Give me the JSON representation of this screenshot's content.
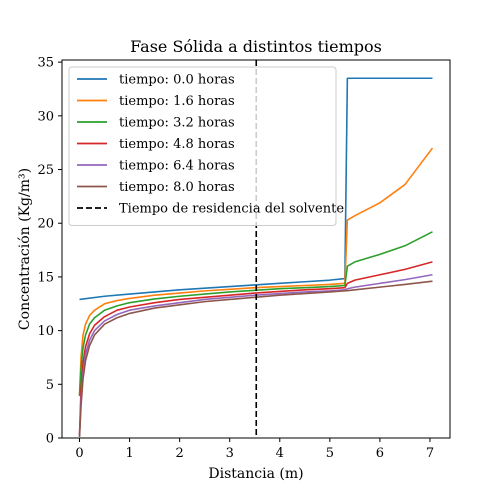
{
  "chart_data": {
    "type": "line",
    "title": "Fase Sólida a distintos tiempos",
    "xlabel": "Distancia (m)",
    "ylabel": "Concentración (Kg/m³)",
    "xlim": [
      -0.35,
      7.4
    ],
    "ylim": [
      0,
      35.2
    ],
    "x_ticks": [
      0,
      1,
      2,
      3,
      4,
      5,
      6,
      7
    ],
    "y_ticks": [
      0,
      5,
      10,
      15,
      20,
      25,
      30,
      35
    ],
    "grid": false,
    "legend_position": "top-left",
    "series": [
      {
        "name": "tiempo: 0.0 horas",
        "color": "#1f77b4",
        "points": [
          [
            0,
            12.9
          ],
          [
            0.5,
            13.2
          ],
          [
            1,
            13.4
          ],
          [
            1.5,
            13.6
          ],
          [
            2,
            13.8
          ],
          [
            2.5,
            13.95
          ],
          [
            3,
            14.1
          ],
          [
            3.5,
            14.25
          ],
          [
            4,
            14.4
          ],
          [
            4.5,
            14.55
          ],
          [
            5,
            14.7
          ],
          [
            5.3,
            14.85
          ],
          [
            5.35,
            33.5
          ],
          [
            7.05,
            33.5
          ]
        ]
      },
      {
        "name": "tiempo: 1.6 horas",
        "color": "#ff7f0e",
        "points": [
          [
            0,
            4
          ],
          [
            0.03,
            7.5
          ],
          [
            0.07,
            9.6
          ],
          [
            0.12,
            10.6
          ],
          [
            0.2,
            11.4
          ],
          [
            0.3,
            11.9
          ],
          [
            0.5,
            12.5
          ],
          [
            0.75,
            12.8
          ],
          [
            1,
            13.0
          ],
          [
            1.5,
            13.3
          ],
          [
            2,
            13.5
          ],
          [
            2.5,
            13.7
          ],
          [
            3,
            13.85
          ],
          [
            3.5,
            14.0
          ],
          [
            4,
            14.1
          ],
          [
            4.5,
            14.2
          ],
          [
            5,
            14.3
          ],
          [
            5.3,
            14.4
          ],
          [
            5.35,
            20.3
          ],
          [
            5.5,
            20.7
          ],
          [
            6,
            21.9
          ],
          [
            6.5,
            23.6
          ],
          [
            7.05,
            27.0
          ]
        ]
      },
      {
        "name": "tiempo: 3.2 horas",
        "color": "#2ca02c",
        "points": [
          [
            0,
            3.9
          ],
          [
            0.03,
            6.5
          ],
          [
            0.07,
            8.4
          ],
          [
            0.12,
            9.6
          ],
          [
            0.2,
            10.6
          ],
          [
            0.3,
            11.2
          ],
          [
            0.5,
            11.9
          ],
          [
            0.75,
            12.3
          ],
          [
            1,
            12.6
          ],
          [
            1.5,
            12.95
          ],
          [
            2,
            13.2
          ],
          [
            2.5,
            13.4
          ],
          [
            3,
            13.6
          ],
          [
            3.5,
            13.75
          ],
          [
            4,
            13.9
          ],
          [
            4.5,
            14.0
          ],
          [
            5,
            14.1
          ],
          [
            5.3,
            14.2
          ],
          [
            5.35,
            16.0
          ],
          [
            5.5,
            16.4
          ],
          [
            6,
            17.1
          ],
          [
            6.5,
            17.9
          ],
          [
            7.05,
            19.2
          ]
        ]
      },
      {
        "name": "tiempo: 4.8 horas",
        "color": "#d62728",
        "points": [
          [
            0,
            0.3
          ],
          [
            0.03,
            4.5
          ],
          [
            0.07,
            7.0
          ],
          [
            0.12,
            8.5
          ],
          [
            0.2,
            9.7
          ],
          [
            0.3,
            10.5
          ],
          [
            0.5,
            11.3
          ],
          [
            0.75,
            11.9
          ],
          [
            1,
            12.2
          ],
          [
            1.5,
            12.6
          ],
          [
            2,
            12.9
          ],
          [
            2.5,
            13.1
          ],
          [
            3,
            13.3
          ],
          [
            3.5,
            13.5
          ],
          [
            4,
            13.65
          ],
          [
            4.5,
            13.8
          ],
          [
            5,
            13.9
          ],
          [
            5.3,
            14.0
          ],
          [
            5.35,
            14.4
          ],
          [
            5.5,
            14.7
          ],
          [
            6,
            15.2
          ],
          [
            6.5,
            15.7
          ],
          [
            7.05,
            16.4
          ]
        ]
      },
      {
        "name": "tiempo: 6.4 horas",
        "color": "#9467bd",
        "points": [
          [
            0,
            0.2
          ],
          [
            0.03,
            3.5
          ],
          [
            0.07,
            6.0
          ],
          [
            0.12,
            7.8
          ],
          [
            0.2,
            9.1
          ],
          [
            0.3,
            10.0
          ],
          [
            0.5,
            10.9
          ],
          [
            0.75,
            11.5
          ],
          [
            1,
            11.9
          ],
          [
            1.5,
            12.3
          ],
          [
            2,
            12.6
          ],
          [
            2.5,
            12.9
          ],
          [
            3,
            13.1
          ],
          [
            3.5,
            13.3
          ],
          [
            4,
            13.45
          ],
          [
            4.5,
            13.6
          ],
          [
            5,
            13.7
          ],
          [
            5.3,
            13.8
          ],
          [
            5.35,
            13.9
          ],
          [
            5.5,
            14.05
          ],
          [
            6,
            14.4
          ],
          [
            6.5,
            14.75
          ],
          [
            7.05,
            15.2
          ]
        ]
      },
      {
        "name": "tiempo: 8.0 horas",
        "color": "#8c564b",
        "points": [
          [
            0,
            0.1
          ],
          [
            0.03,
            3.0
          ],
          [
            0.07,
            5.5
          ],
          [
            0.12,
            7.2
          ],
          [
            0.2,
            8.6
          ],
          [
            0.3,
            9.6
          ],
          [
            0.5,
            10.6
          ],
          [
            0.75,
            11.2
          ],
          [
            1,
            11.6
          ],
          [
            1.5,
            12.1
          ],
          [
            2,
            12.4
          ],
          [
            2.5,
            12.7
          ],
          [
            3,
            12.9
          ],
          [
            3.5,
            13.1
          ],
          [
            4,
            13.3
          ],
          [
            4.5,
            13.45
          ],
          [
            5,
            13.6
          ],
          [
            5.3,
            13.7
          ],
          [
            5.35,
            13.72
          ],
          [
            5.5,
            13.8
          ],
          [
            6,
            14.05
          ],
          [
            6.5,
            14.3
          ],
          [
            7.05,
            14.6
          ]
        ]
      }
    ],
    "vline": {
      "name": "Tiempo de residencia del solvente",
      "x": 3.53,
      "color": "#000000",
      "style": "dashed"
    }
  }
}
